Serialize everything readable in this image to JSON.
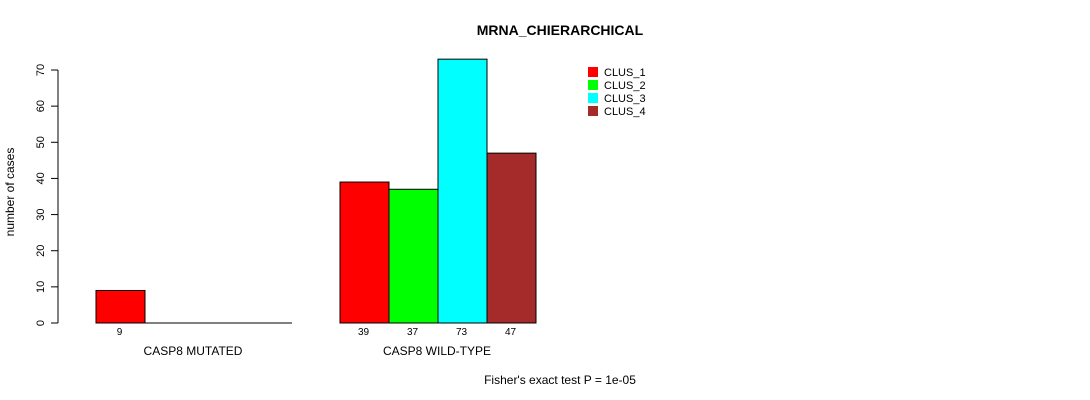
{
  "chart_data": {
    "type": "bar",
    "title": "MRNA_CHIERARCHICAL",
    "ylabel": "number of cases",
    "xlabel": "",
    "ylim": [
      0,
      70
    ],
    "yticks": [
      0,
      10,
      20,
      30,
      40,
      50,
      60,
      70
    ],
    "grid": false,
    "legend_position": "top-right",
    "groups": [
      "CASP8 MUTATED",
      "CASP8 WILD-TYPE"
    ],
    "series": [
      {
        "name": "CLUS_1",
        "color": "#ff0000",
        "values": [
          9,
          39
        ]
      },
      {
        "name": "CLUS_2",
        "color": "#00ff00",
        "values": [
          0,
          37
        ]
      },
      {
        "name": "CLUS_3",
        "color": "#00ffff",
        "values": [
          0,
          73
        ]
      },
      {
        "name": "CLUS_4",
        "color": "#a52a2a",
        "values": [
          0,
          47
        ]
      }
    ],
    "value_labels": [
      [
        "9",
        "",
        "",
        ""
      ],
      [
        "39",
        "37",
        "73",
        "47"
      ]
    ],
    "footnote": "Fisher's exact test P = 1e-05"
  }
}
